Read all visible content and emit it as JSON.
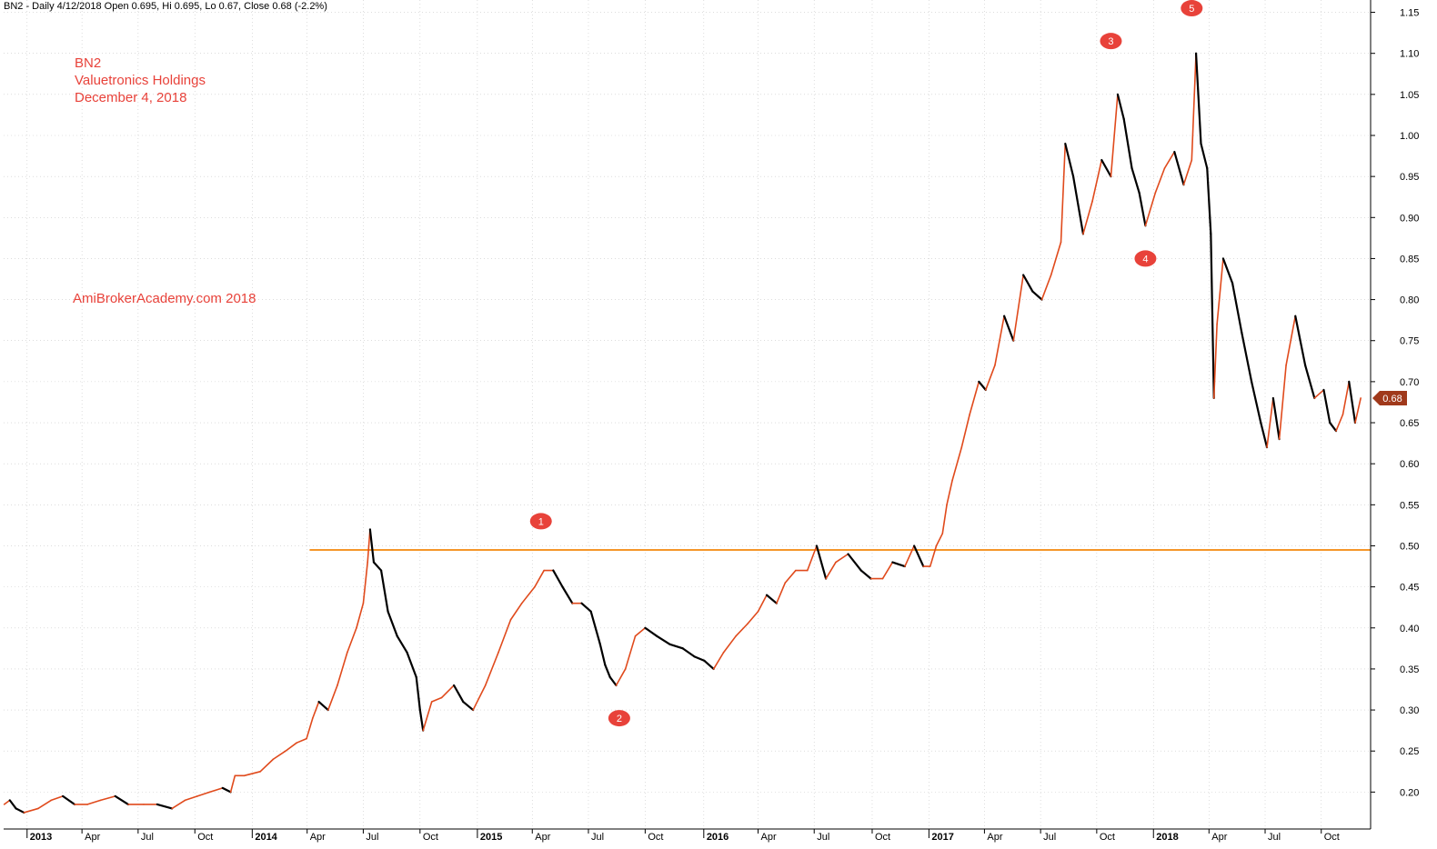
{
  "header": {
    "text": "BN2 - Daily 4/12/2018 Open 0.695, Hi 0.695, Lo 0.67, Close 0.68 (-2.2%)"
  },
  "annotations": {
    "ticker": "BN2",
    "company": "Valuetronics Holdings",
    "date": "December 4, 2018",
    "watermark": "AmiBrokerAcademy.com  2018"
  },
  "colors": {
    "up": "#e04a1c",
    "down": "#000000",
    "support_line": "#f5962a",
    "marker": "#e8423a",
    "price_tag": "#a0391b",
    "grid": "#c8c8c8"
  },
  "chart_data": {
    "type": "line",
    "title": "",
    "ylabel": "",
    "xlabel": "",
    "ylim": [
      0.155,
      1.165
    ],
    "x_range": [
      "2012-11-25",
      "2018-12-20"
    ],
    "y_ticks": [
      "0.20",
      "0.25",
      "0.30",
      "0.35",
      "0.40",
      "0.45",
      "0.50",
      "0.55",
      "0.60",
      "0.65",
      "0.70",
      "0.75",
      "0.80",
      "0.85",
      "0.90",
      "0.95",
      "1.00",
      "1.05",
      "1.10",
      "1.15"
    ],
    "x_ticks": [
      {
        "label": "2013",
        "date": "2013-01-02",
        "major": true
      },
      {
        "label": "Apr",
        "date": "2013-04-01",
        "major": false
      },
      {
        "label": "Jul",
        "date": "2013-07-01",
        "major": false
      },
      {
        "label": "Oct",
        "date": "2013-10-01",
        "major": false
      },
      {
        "label": "2014",
        "date": "2014-01-02",
        "major": true
      },
      {
        "label": "Apr",
        "date": "2014-04-01",
        "major": false
      },
      {
        "label": "Jul",
        "date": "2014-07-01",
        "major": false
      },
      {
        "label": "Oct",
        "date": "2014-10-01",
        "major": false
      },
      {
        "label": "2015",
        "date": "2015-01-02",
        "major": true
      },
      {
        "label": "Apr",
        "date": "2015-04-01",
        "major": false
      },
      {
        "label": "Jul",
        "date": "2015-07-01",
        "major": false
      },
      {
        "label": "Oct",
        "date": "2015-10-01",
        "major": false
      },
      {
        "label": "2016",
        "date": "2016-01-04",
        "major": true
      },
      {
        "label": "Apr",
        "date": "2016-04-01",
        "major": false
      },
      {
        "label": "Jul",
        "date": "2016-07-01",
        "major": false
      },
      {
        "label": "Oct",
        "date": "2016-10-03",
        "major": false
      },
      {
        "label": "2017",
        "date": "2017-01-03",
        "major": true
      },
      {
        "label": "Apr",
        "date": "2017-04-03",
        "major": false
      },
      {
        "label": "Jul",
        "date": "2017-07-03",
        "major": false
      },
      {
        "label": "Oct",
        "date": "2017-10-02",
        "major": false
      },
      {
        "label": "2018",
        "date": "2018-01-02",
        "major": true
      },
      {
        "label": "Apr",
        "date": "2018-04-02",
        "major": false
      },
      {
        "label": "Jul",
        "date": "2018-07-02",
        "major": false
      },
      {
        "label": "Oct",
        "date": "2018-10-01",
        "major": false
      }
    ],
    "series": [
      {
        "points": [
          [
            "2012-11-26",
            0.185
          ],
          [
            "2012-12-05",
            0.19
          ],
          [
            "2012-12-15",
            0.18
          ],
          [
            "2012-12-28",
            0.175
          ],
          [
            "2013-01-20",
            0.18
          ],
          [
            "2013-02-10",
            0.19
          ],
          [
            "2013-03-01",
            0.195
          ],
          [
            "2013-03-20",
            0.185
          ],
          [
            "2013-04-10",
            0.185
          ],
          [
            "2013-05-01",
            0.19
          ],
          [
            "2013-05-25",
            0.195
          ],
          [
            "2013-06-15",
            0.185
          ],
          [
            "2013-07-10",
            0.185
          ],
          [
            "2013-08-01",
            0.185
          ],
          [
            "2013-08-25",
            0.18
          ],
          [
            "2013-09-15",
            0.19
          ],
          [
            "2013-10-05",
            0.195
          ],
          [
            "2013-10-25",
            0.2
          ],
          [
            "2013-11-15",
            0.205
          ],
          [
            "2013-11-28",
            0.2
          ],
          [
            "2013-12-05",
            0.22
          ],
          [
            "2013-12-20",
            0.22
          ],
          [
            "2014-01-15",
            0.225
          ],
          [
            "2014-02-05",
            0.24
          ],
          [
            "2014-02-25",
            0.25
          ],
          [
            "2014-03-15",
            0.26
          ],
          [
            "2014-03-31",
            0.265
          ],
          [
            "2014-04-10",
            0.29
          ],
          [
            "2014-04-20",
            0.31
          ],
          [
            "2014-05-05",
            0.3
          ],
          [
            "2014-05-20",
            0.33
          ],
          [
            "2014-06-05",
            0.37
          ],
          [
            "2014-06-20",
            0.4
          ],
          [
            "2014-07-01",
            0.43
          ],
          [
            "2014-07-08",
            0.48
          ],
          [
            "2014-07-12",
            0.52
          ],
          [
            "2014-07-18",
            0.48
          ],
          [
            "2014-07-30",
            0.47
          ],
          [
            "2014-08-10",
            0.42
          ],
          [
            "2014-08-25",
            0.39
          ],
          [
            "2014-09-10",
            0.37
          ],
          [
            "2014-09-25",
            0.34
          ],
          [
            "2014-10-01",
            0.3
          ],
          [
            "2014-10-06",
            0.275
          ],
          [
            "2014-10-20",
            0.31
          ],
          [
            "2014-11-05",
            0.315
          ],
          [
            "2014-11-25",
            0.33
          ],
          [
            "2014-12-10",
            0.31
          ],
          [
            "2014-12-26",
            0.3
          ],
          [
            "2015-01-15",
            0.33
          ],
          [
            "2015-02-05",
            0.37
          ],
          [
            "2015-02-25",
            0.41
          ],
          [
            "2015-03-15",
            0.43
          ],
          [
            "2015-04-05",
            0.45
          ],
          [
            "2015-04-20",
            0.47
          ],
          [
            "2015-05-05",
            0.47
          ],
          [
            "2015-05-20",
            0.45
          ],
          [
            "2015-06-05",
            0.43
          ],
          [
            "2015-06-20",
            0.43
          ],
          [
            "2015-07-05",
            0.42
          ],
          [
            "2015-07-20",
            0.38
          ],
          [
            "2015-07-28",
            0.355
          ],
          [
            "2015-08-05",
            0.34
          ],
          [
            "2015-08-15",
            0.33
          ],
          [
            "2015-08-30",
            0.35
          ],
          [
            "2015-09-15",
            0.39
          ],
          [
            "2015-10-01",
            0.4
          ],
          [
            "2015-10-20",
            0.39
          ],
          [
            "2015-11-10",
            0.38
          ],
          [
            "2015-12-01",
            0.375
          ],
          [
            "2015-12-20",
            0.365
          ],
          [
            "2016-01-05",
            0.36
          ],
          [
            "2016-01-20",
            0.35
          ],
          [
            "2016-02-05",
            0.37
          ],
          [
            "2016-02-25",
            0.39
          ],
          [
            "2016-03-15",
            0.405
          ],
          [
            "2016-04-01",
            0.42
          ],
          [
            "2016-04-15",
            0.44
          ],
          [
            "2016-05-01",
            0.43
          ],
          [
            "2016-05-15",
            0.455
          ],
          [
            "2016-06-01",
            0.47
          ],
          [
            "2016-06-20",
            0.47
          ],
          [
            "2016-07-05",
            0.5
          ],
          [
            "2016-07-20",
            0.46
          ],
          [
            "2016-08-05",
            0.48
          ],
          [
            "2016-08-25",
            0.49
          ],
          [
            "2016-09-15",
            0.47
          ],
          [
            "2016-10-01",
            0.46
          ],
          [
            "2016-10-20",
            0.46
          ],
          [
            "2016-11-05",
            0.48
          ],
          [
            "2016-11-25",
            0.475
          ],
          [
            "2016-12-10",
            0.5
          ],
          [
            "2016-12-25",
            0.475
          ],
          [
            "2017-01-05",
            0.475
          ],
          [
            "2017-01-15",
            0.5
          ],
          [
            "2017-01-25",
            0.515
          ],
          [
            "2017-02-01",
            0.55
          ],
          [
            "2017-02-10",
            0.58
          ],
          [
            "2017-02-25",
            0.62
          ],
          [
            "2017-03-10",
            0.66
          ],
          [
            "2017-03-25",
            0.7
          ],
          [
            "2017-04-05",
            0.69
          ],
          [
            "2017-04-20",
            0.72
          ],
          [
            "2017-05-05",
            0.78
          ],
          [
            "2017-05-20",
            0.75
          ],
          [
            "2017-06-05",
            0.83
          ],
          [
            "2017-06-20",
            0.81
          ],
          [
            "2017-07-05",
            0.8
          ],
          [
            "2017-07-20",
            0.83
          ],
          [
            "2017-08-05",
            0.87
          ],
          [
            "2017-08-12",
            0.99
          ],
          [
            "2017-08-25",
            0.95
          ],
          [
            "2017-09-10",
            0.88
          ],
          [
            "2017-09-25",
            0.92
          ],
          [
            "2017-10-10",
            0.97
          ],
          [
            "2017-10-25",
            0.95
          ],
          [
            "2017-11-05",
            1.05
          ],
          [
            "2017-11-15",
            1.02
          ],
          [
            "2017-11-28",
            0.96
          ],
          [
            "2017-12-10",
            0.93
          ],
          [
            "2017-12-20",
            0.89
          ],
          [
            "2018-01-05",
            0.93
          ],
          [
            "2018-01-20",
            0.96
          ],
          [
            "2018-02-05",
            0.98
          ],
          [
            "2018-02-20",
            0.94
          ],
          [
            "2018-03-05",
            0.97
          ],
          [
            "2018-03-12",
            1.1
          ],
          [
            "2018-03-20",
            0.99
          ],
          [
            "2018-03-30",
            0.96
          ],
          [
            "2018-04-05",
            0.88
          ],
          [
            "2018-04-10",
            0.68
          ],
          [
            "2018-04-15",
            0.77
          ],
          [
            "2018-04-25",
            0.85
          ],
          [
            "2018-05-10",
            0.82
          ],
          [
            "2018-05-25",
            0.76
          ],
          [
            "2018-06-10",
            0.7
          ],
          [
            "2018-06-25",
            0.65
          ],
          [
            "2018-07-05",
            0.62
          ],
          [
            "2018-07-15",
            0.68
          ],
          [
            "2018-07-25",
            0.63
          ],
          [
            "2018-08-05",
            0.72
          ],
          [
            "2018-08-20",
            0.78
          ],
          [
            "2018-09-05",
            0.72
          ],
          [
            "2018-09-20",
            0.68
          ],
          [
            "2018-10-05",
            0.69
          ],
          [
            "2018-10-15",
            0.65
          ],
          [
            "2018-10-25",
            0.64
          ],
          [
            "2018-11-05",
            0.66
          ],
          [
            "2018-11-15",
            0.7
          ],
          [
            "2018-11-25",
            0.65
          ],
          [
            "2018-12-04",
            0.68
          ]
        ]
      }
    ],
    "support_line": {
      "value": 0.495,
      "x_start": "2014-04-05",
      "x_end": "2018-12-20"
    },
    "last_price": {
      "value": 0.68,
      "label": "0.68"
    },
    "markers": [
      {
        "label": "1",
        "date": "2015-04-15",
        "value": 0.53
      },
      {
        "label": "2",
        "date": "2015-08-20",
        "value": 0.29
      },
      {
        "label": "3",
        "date": "2017-10-25",
        "value": 1.115
      },
      {
        "label": "4",
        "date": "2017-12-20",
        "value": 0.85
      },
      {
        "label": "5",
        "date": "2018-03-05",
        "value": 1.155
      }
    ]
  }
}
